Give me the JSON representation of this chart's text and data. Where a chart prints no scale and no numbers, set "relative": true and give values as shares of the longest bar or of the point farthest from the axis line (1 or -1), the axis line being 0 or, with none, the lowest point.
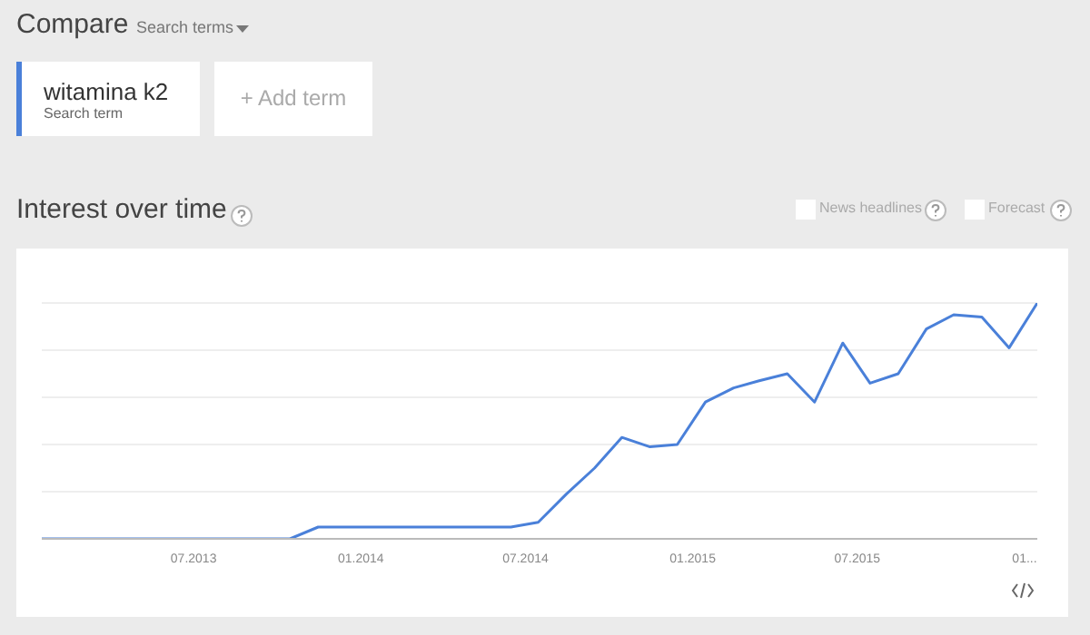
{
  "chart_data": {
    "type": "line",
    "title": "Interest over time",
    "annotations": [
      "Compare",
      "Search terms",
      "Search term",
      "+ Add term",
      "News headlines",
      "Forecast"
    ],
    "x": [
      "2013-01-15",
      "2013-02-15",
      "2013-03-15",
      "2013-04-15",
      "2013-05-15",
      "2013-06-15",
      "2013-07-15",
      "2013-08-15",
      "2013-09-15",
      "2013-10-15",
      "2013-11-15",
      "2013-12-15",
      "2014-01-15",
      "2014-02-15",
      "2014-03-15",
      "2014-04-15",
      "2014-05-15",
      "2014-06-15",
      "2014-07-15",
      "2014-08-15",
      "2014-09-15",
      "2014-10-15",
      "2014-11-15",
      "2014-12-15",
      "2015-01-15",
      "2015-02-15",
      "2015-03-15",
      "2015-04-15",
      "2015-05-15",
      "2015-06-15",
      "2015-07-15",
      "2015-08-15",
      "2015-09-15",
      "2015-10-15",
      "2015-11-15",
      "2015-12-15",
      "2016-01-15"
    ],
    "series": [
      {
        "name": "witamina k2",
        "color": "#4a80d9",
        "values": [
          0,
          0,
          0,
          0,
          0,
          0,
          0,
          0,
          0,
          0,
          0.05,
          0.05,
          0.05,
          0.05,
          0.05,
          0.05,
          0.05,
          0.05,
          0.07,
          0.19,
          0.3,
          0.43,
          0.39,
          0.4,
          0.58,
          0.64,
          0.67,
          0.7,
          0.58,
          0.83,
          0.66,
          0.7,
          0.89,
          0.95,
          0.94,
          0.81,
          1
        ]
      }
    ],
    "relative": true,
    "xlim": [
      "2013-01-15",
      "2016-01-15"
    ],
    "xticks": [
      {
        "value": "2013-07-01",
        "label": "07.2013"
      },
      {
        "value": "2014-01-01",
        "label": "01.2014"
      },
      {
        "value": "2014-07-01",
        "label": "07.2014"
      },
      {
        "value": "2015-01-01",
        "label": "01.2015"
      },
      {
        "value": "2015-07-01",
        "label": "07.2015"
      },
      {
        "value": "2016-01-01",
        "label": "01..."
      }
    ],
    "grid": "y",
    "legend": "top left",
    "marker": "none",
    "line_style": "solid"
  }
}
